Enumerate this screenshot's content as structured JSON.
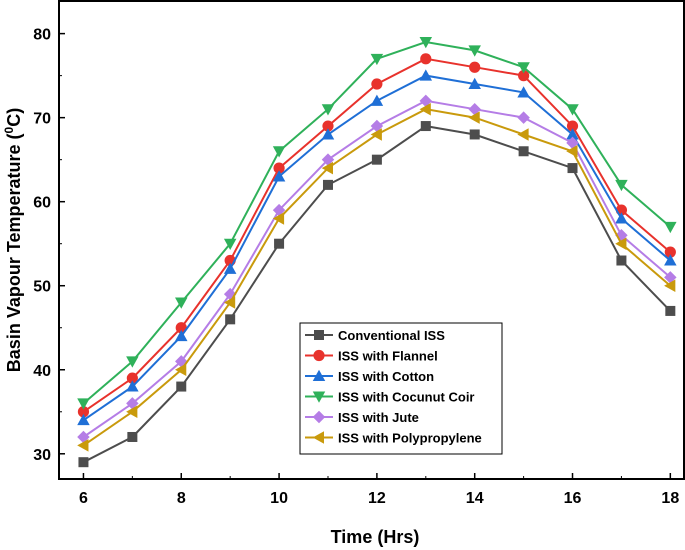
{
  "chart_data": {
    "type": "line",
    "xlabel": "Time (Hrs)",
    "ylabel": "Basin Vapour Temperature (°C)",
    "ylabel_parts": {
      "main": "Basin Vapour Temperature (",
      "sup": "0",
      "unit": "C)"
    },
    "xlim": [
      6,
      18
    ],
    "ylim": [
      27,
      84
    ],
    "xticks": [
      6,
      8,
      10,
      12,
      14,
      16,
      18
    ],
    "yticks": [
      30,
      40,
      50,
      60,
      70,
      80
    ],
    "grid": false,
    "legend_position": "bottom-center",
    "x": [
      6,
      7,
      8,
      9,
      10,
      11,
      12,
      13,
      14,
      15,
      16,
      17,
      18
    ],
    "series": [
      {
        "name": "Conventional ISS",
        "color": "#4d4d4d",
        "marker": "square",
        "values": [
          29,
          32,
          38,
          46,
          55,
          62,
          65,
          69,
          68,
          66,
          64,
          53,
          47
        ]
      },
      {
        "name": "ISS with Flannel",
        "color": "#e8322c",
        "marker": "circle",
        "values": [
          35,
          39,
          45,
          53,
          64,
          69,
          74,
          77,
          76,
          75,
          69,
          59,
          54
        ]
      },
      {
        "name": "ISS with Cotton",
        "color": "#1f6fd6",
        "marker": "triangle-up",
        "values": [
          34,
          38,
          44,
          52,
          63,
          68,
          72,
          75,
          74,
          73,
          68,
          58,
          53
        ]
      },
      {
        "name": "ISS with Cocunut Coir",
        "color": "#2fb15a",
        "marker": "triangle-down",
        "values": [
          36,
          41,
          48,
          55,
          66,
          71,
          77,
          79,
          78,
          76,
          71,
          62,
          57
        ]
      },
      {
        "name": "ISS with Jute",
        "color": "#b57de6",
        "marker": "diamond",
        "values": [
          32,
          36,
          41,
          49,
          59,
          65,
          69,
          72,
          71,
          70,
          67,
          56,
          51
        ]
      },
      {
        "name": "ISS with Polypropylene",
        "color": "#c99a0c",
        "marker": "triangle-left",
        "values": [
          31,
          35,
          40,
          48,
          58,
          64,
          68,
          71,
          70,
          68,
          66,
          55,
          50
        ]
      }
    ]
  }
}
